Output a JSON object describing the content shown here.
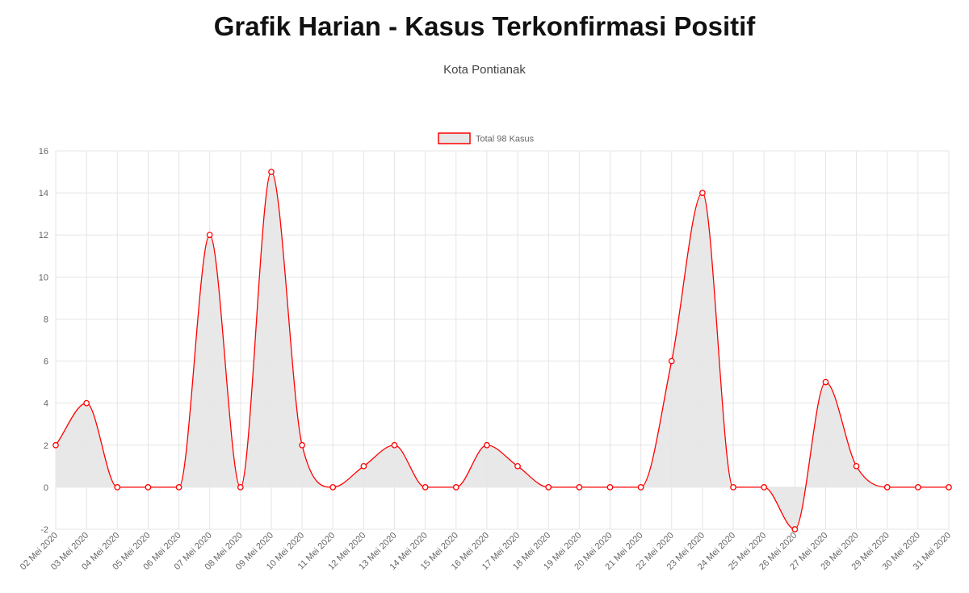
{
  "title": "Grafik Harian - Kasus Terkonfirmasi Positif",
  "subtitle": "Kota Pontianak",
  "colors": {
    "line": "#ff0000",
    "fill": "#e6e6e6",
    "grid": "#e5e5e5",
    "text": "#666666"
  },
  "chart_data": {
    "type": "area",
    "title": "Grafik Harian - Kasus Terkonfirmasi Positif",
    "subtitle": "Kota Pontianak",
    "x": [
      "02 Mei 2020",
      "03 Mei 2020",
      "04 Mei 2020",
      "05 Mei 2020",
      "06 Mei 2020",
      "07 Mei 2020",
      "08 Mei 2020",
      "09 Mei 2020",
      "10 Mei 2020",
      "11 Mei 2020",
      "12 Mei 2020",
      "13 Mei 2020",
      "14 Mei 2020",
      "15 Mei 2020",
      "16 Mei 2020",
      "17 Mei 2020",
      "18 Mei 2020",
      "19 Mei 2020",
      "20 Mei 2020",
      "21 Mei 2020",
      "22 Mei 2020",
      "23 Mei 2020",
      "24 Mei 2020",
      "25 Mei 2020",
      "26 Mei 2020",
      "27 Mei 2020",
      "28 Mei 2020",
      "29 Mei 2020",
      "30 Mei 2020",
      "31 Mei 2020"
    ],
    "series": [
      {
        "name": "Total 98 Kasus",
        "values": [
          2,
          4,
          0,
          0,
          0,
          12,
          0,
          15,
          2,
          0,
          1,
          2,
          0,
          0,
          2,
          1,
          0,
          0,
          0,
          0,
          6,
          14,
          0,
          0,
          -2,
          5,
          1,
          0,
          0,
          0
        ]
      }
    ],
    "ylim": [
      -2,
      16
    ],
    "yticks": [
      "16",
      "14",
      "12",
      "10",
      "8",
      "6",
      "4",
      "2",
      "0",
      "-2"
    ],
    "grid": true,
    "legend": "top-center",
    "smooth": true
  }
}
